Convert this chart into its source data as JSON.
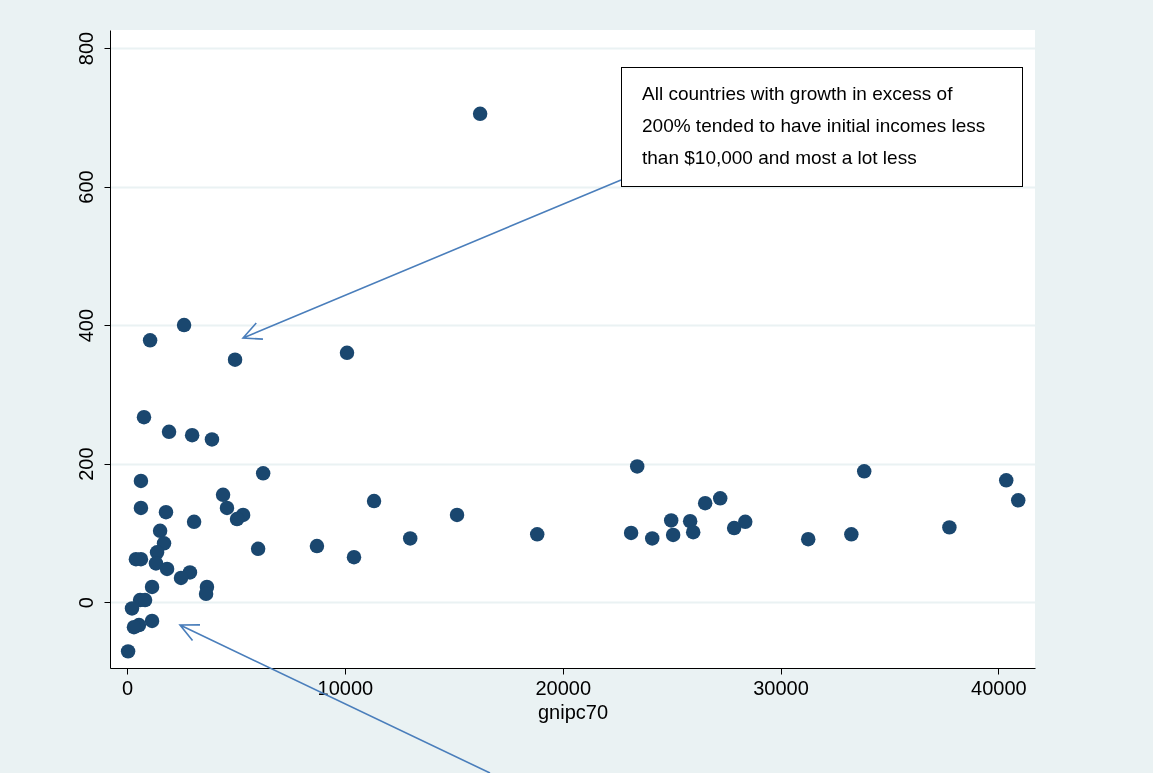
{
  "chart_data": {
    "type": "scatter",
    "xlabel": "gnipc70",
    "x": [
      16210,
      2620,
      1060,
      4960,
      10100,
      780,
      1930,
      2990,
      3900,
      23420,
      33840,
      6250,
      40360,
      640,
      40910,
      11340,
      4410,
      640,
      4590,
      1790,
      27230,
      26540,
      15150,
      5330,
      5050,
      3080,
      24980,
      25850,
      28380,
      27870,
      37750,
      1520,
      23140,
      18830,
      33250,
      25070,
      25990,
      24110,
      31270,
      13000,
      8720,
      6020,
      1700,
      1380,
      410,
      640,
      1330,
      10420,
      1840,
      2890,
      2480,
      3670,
      1150,
      3630,
      600,
      830,
      230,
      1150,
      550,
      320,
      50
    ],
    "series": [
      {
        "color": "#1a476f",
        "values": [
          705,
          400,
          378,
          350,
          360,
          267,
          246,
          241,
          235,
          196,
          189,
          186,
          176,
          175,
          147,
          146,
          155,
          136,
          136,
          130,
          150,
          143,
          126,
          126,
          120,
          116,
          118,
          117,
          116,
          107,
          108,
          103,
          100,
          98,
          98,
          97,
          101,
          92,
          91,
          92,
          81,
          77,
          85,
          72,
          62,
          62,
          56,
          65,
          48,
          43,
          35,
          22,
          22,
          12,
          3,
          3,
          -9,
          -27,
          -33,
          -36,
          -71
        ]
      }
    ],
    "xlim": [
      -780,
      41680
    ],
    "ylim": [
      -95,
      826
    ],
    "xticks": [
      0,
      10000,
      20000,
      30000,
      40000
    ],
    "yticks": [
      0,
      200,
      400,
      600,
      800
    ],
    "grid": "y",
    "marker": "circle",
    "annotations": [
      "All countries with growth in excess of 200% tended to have initial incomes less than $10,000 and most a lot less"
    ]
  }
}
